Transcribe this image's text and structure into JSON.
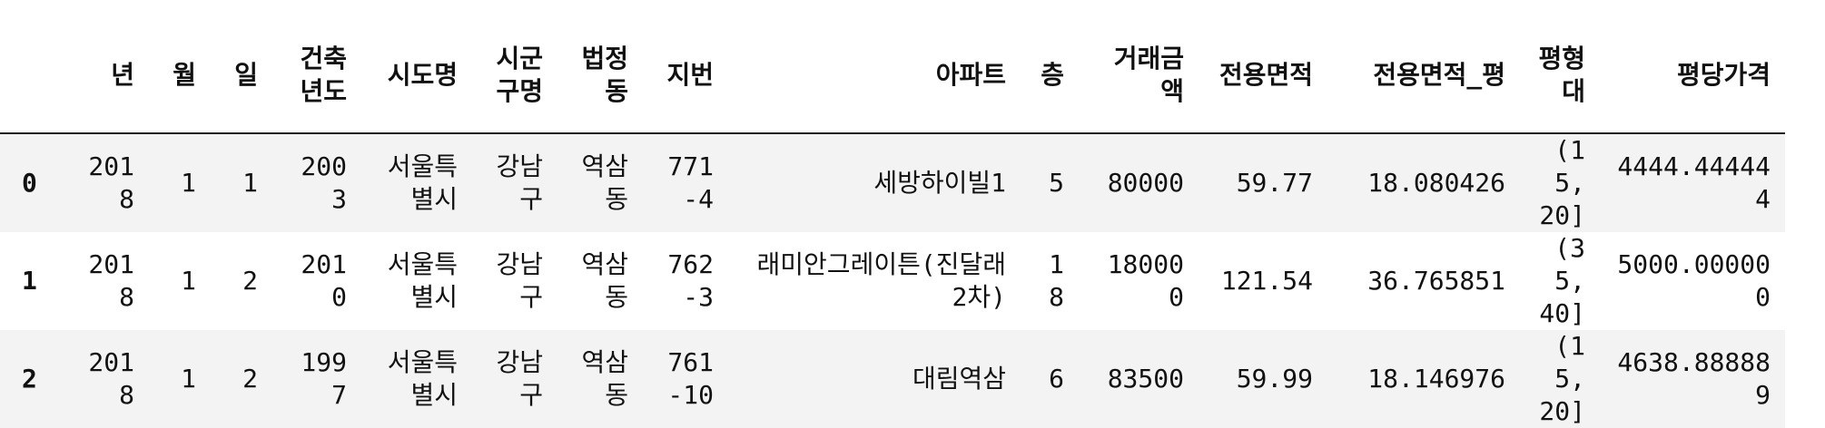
{
  "dataframe": {
    "columns": [
      "년",
      "월",
      "일",
      "건축년도",
      "시도명",
      "시군구명",
      "법정동",
      "지번",
      "아파트",
      "층",
      "거래금액",
      "전용면적",
      "전용면적_평",
      "평형대",
      "평당가격"
    ],
    "rows": [
      {
        "index": "0",
        "cells": [
          "2018",
          "1",
          "1",
          "2003",
          "서울특별시",
          "강남구",
          "역삼동",
          "771-4",
          "세방하이빌1",
          "5",
          "80000",
          "59.77",
          "18.080426",
          "(15, 20]",
          "4444.444444"
        ]
      },
      {
        "index": "1",
        "cells": [
          "2018",
          "1",
          "2",
          "2010",
          "서울특별시",
          "강남구",
          "역삼동",
          "762-3",
          "래미안그레이튼(진달래2차)",
          "18",
          "180000",
          "121.54",
          "36.765851",
          "(35, 40]",
          "5000.000000"
        ]
      },
      {
        "index": "2",
        "cells": [
          "2018",
          "1",
          "2",
          "1997",
          "서울특별시",
          "강남구",
          "역삼동",
          "761-10",
          "대림역삼",
          "6",
          "83500",
          "59.99",
          "18.146976",
          "(15, 20]",
          "4638.888889"
        ]
      }
    ]
  }
}
